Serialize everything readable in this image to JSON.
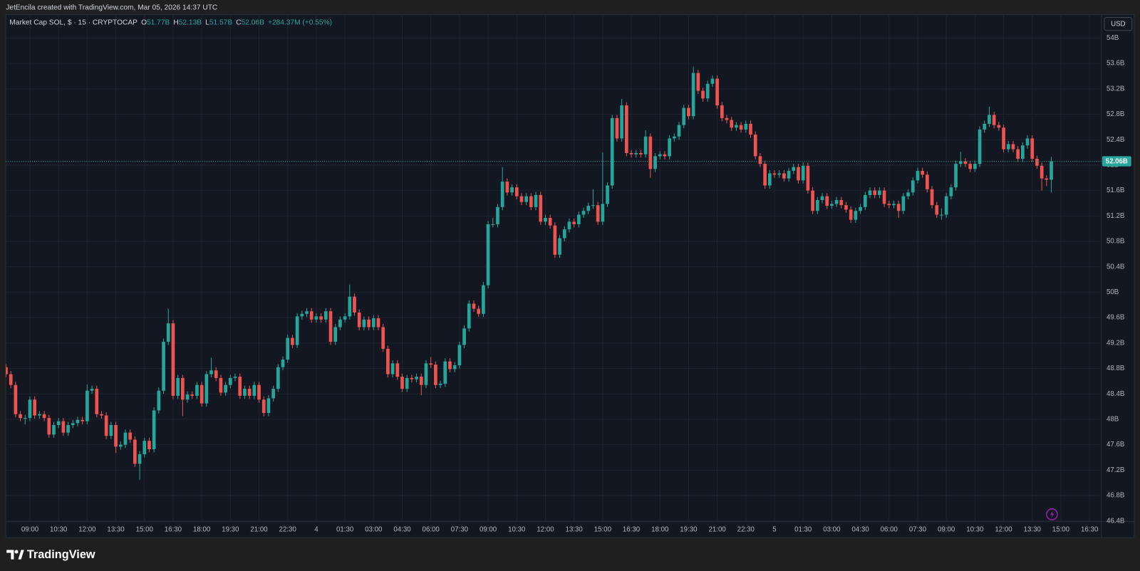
{
  "header": {
    "text": "JetEncila created with TradingView.com, Mar 05, 2026 14:37 UTC"
  },
  "chart_data": {
    "type": "candlestick",
    "symbol": "Market Cap SOL, $ · 15 · CRYPTOCAP",
    "ohlc_legend": [
      {
        "key": "O",
        "label": "51.77B"
      },
      {
        "key": "H",
        "label": "52.13B"
      },
      {
        "key": "L",
        "label": "51.57B"
      },
      {
        "key": "C",
        "label": "52.06B"
      }
    ],
    "change": "+284.37M (+0.55%)",
    "currency": "USD",
    "last_price": {
      "value": 52.06,
      "label": "52.06B"
    },
    "up_color": "#26a69a",
    "down_color": "#ef5350",
    "grid": true,
    "xlim": [
      -0.5,
      229.5
    ],
    "xticks": [
      {
        "value": 5,
        "label": "09:00"
      },
      {
        "value": 11,
        "label": "10:30"
      },
      {
        "value": 17,
        "label": "12:00"
      },
      {
        "value": 23,
        "label": "13:30"
      },
      {
        "value": 29,
        "label": "15:00"
      },
      {
        "value": 35,
        "label": "16:30"
      },
      {
        "value": 41,
        "label": "18:00"
      },
      {
        "value": 47,
        "label": "19:30"
      },
      {
        "value": 53,
        "label": "21:00"
      },
      {
        "value": 59,
        "label": "22:30"
      },
      {
        "value": 65,
        "label": "4"
      },
      {
        "value": 71,
        "label": "01:30"
      },
      {
        "value": 77,
        "label": "03:00"
      },
      {
        "value": 83,
        "label": "04:30"
      },
      {
        "value": 89,
        "label": "06:00"
      },
      {
        "value": 95,
        "label": "07:30"
      },
      {
        "value": 101,
        "label": "09:00"
      },
      {
        "value": 107,
        "label": "10:30"
      },
      {
        "value": 113,
        "label": "12:00"
      },
      {
        "value": 119,
        "label": "13:30"
      },
      {
        "value": 125,
        "label": "15:00"
      },
      {
        "value": 131,
        "label": "16:30"
      },
      {
        "value": 137,
        "label": "18:00"
      },
      {
        "value": 143,
        "label": "19:30"
      },
      {
        "value": 149,
        "label": "21:00"
      },
      {
        "value": 155,
        "label": "22:30"
      },
      {
        "value": 161,
        "label": "5"
      },
      {
        "value": 167,
        "label": "01:30"
      },
      {
        "value": 173,
        "label": "03:00"
      },
      {
        "value": 179,
        "label": "04:30"
      },
      {
        "value": 185,
        "label": "06:00"
      },
      {
        "value": 191,
        "label": "07:30"
      },
      {
        "value": 197,
        "label": "09:00"
      },
      {
        "value": 203,
        "label": "10:30"
      },
      {
        "value": 209,
        "label": "12:00"
      },
      {
        "value": 215,
        "label": "13:30"
      },
      {
        "value": 221,
        "label": "15:00"
      },
      {
        "value": 227,
        "label": "16:30"
      }
    ],
    "ylim": [
      46.39,
      54.37
    ],
    "yticks": [
      {
        "value": 46.4,
        "label": "46.4B"
      },
      {
        "value": 46.8,
        "label": "46.8B"
      },
      {
        "value": 47.2,
        "label": "47.2B"
      },
      {
        "value": 47.6,
        "label": "47.6B"
      },
      {
        "value": 48,
        "label": "48B"
      },
      {
        "value": 48.4,
        "label": "48.4B"
      },
      {
        "value": 48.8,
        "label": "48.8B"
      },
      {
        "value": 49.2,
        "label": "49.2B"
      },
      {
        "value": 49.6,
        "label": "49.6B"
      },
      {
        "value": 50,
        "label": "50B"
      },
      {
        "value": 50.4,
        "label": "50.4B"
      },
      {
        "value": 50.8,
        "label": "50.8B"
      },
      {
        "value": 51.2,
        "label": "51.2B"
      },
      {
        "value": 51.6,
        "label": "51.6B"
      },
      {
        "value": 52,
        "label": "52B"
      },
      {
        "value": 52.4,
        "label": "52.4B"
      },
      {
        "value": 52.8,
        "label": "52.8B"
      },
      {
        "value": 53.2,
        "label": "53.2B"
      },
      {
        "value": 53.6,
        "label": "53.6B"
      },
      {
        "value": 54,
        "label": "54B"
      }
    ],
    "open": [
      48.82,
      48.71,
      48.54,
      48.08,
      48.02,
      48.02,
      48.31,
      48.06,
      48.08,
      48.02,
      47.76,
      47.91,
      47.97,
      47.79,
      47.91,
      47.94,
      47.99,
      47.97,
      48.45,
      48.48,
      48.08,
      48.06,
      47.74,
      47.91,
      47.57,
      47.6,
      47.79,
      47.68,
      47.3,
      47.45,
      47.66,
      47.53,
      48.14,
      48.45,
      49.22,
      49.51,
      48.37,
      48.65,
      48.31,
      48.39,
      48.37,
      48.54,
      48.25,
      48.71,
      48.77,
      48.65,
      48.42,
      48.54,
      48.65,
      48.67,
      48.37,
      48.48,
      48.37,
      48.54,
      48.31,
      48.1,
      48.33,
      48.48,
      48.82,
      48.94,
      49.28,
      49.17,
      49.62,
      49.66,
      49.7,
      49.57,
      49.62,
      49.57,
      49.7,
      49.22,
      49.45,
      49.57,
      49.62,
      49.93,
      49.68,
      49.45,
      49.57,
      49.45,
      49.59,
      49.45,
      49.11,
      48.71,
      48.88,
      48.67,
      48.48,
      48.65,
      48.63,
      48.67,
      48.54,
      48.88,
      48.86,
      48.54,
      48.56,
      48.91,
      48.79,
      48.85,
      49.17,
      49.43,
      49.82,
      49.74,
      49.66,
      50.11,
      51.07,
      51.07,
      51.34,
      51.74,
      51.57,
      51.65,
      51.51,
      51.42,
      51.51,
      51.34,
      51.53,
      51.11,
      51.17,
      51.05,
      50.59,
      50.85,
      50.99,
      51.11,
      51.07,
      51.22,
      51.28,
      51.36,
      51.37,
      51.11,
      51.39,
      51.68,
      52.74,
      52.42,
      52.94,
      52.19,
      52.17,
      52.19,
      52.17,
      52.45,
      51.94,
      52.14,
      52.17,
      52.14,
      52.42,
      52.45,
      52.63,
      52.9,
      52.77,
      53.45,
      53.17,
      53.05,
      53.28,
      53.36,
      52.94,
      52.74,
      52.71,
      52.59,
      52.63,
      52.56,
      52.65,
      52.48,
      52.14,
      52.02,
      51.68,
      51.87,
      51.85,
      51.87,
      51.79,
      51.91,
      51.97,
      51.76,
      51.99,
      51.6,
      51.28,
      51.45,
      51.51,
      51.36,
      51.39,
      51.45,
      51.37,
      51.3,
      51.14,
      51.28,
      51.34,
      51.53,
      51.6,
      51.53,
      51.6,
      51.39,
      51.37,
      51.39,
      51.28,
      51.51,
      51.57,
      51.76,
      51.91,
      51.85,
      51.62,
      51.37,
      51.22,
      51.22,
      51.51,
      51.65,
      52.02,
      52.06,
      52.02,
      51.94,
      52.02,
      52.56,
      52.65,
      52.79,
      52.63,
      52.59,
      52.25,
      52.33,
      52.25,
      52.1,
      52.31,
      52.42,
      52.1,
      51.99,
      51.79,
      51.77
    ],
    "high": [
      48.87,
      48.76,
      48.59,
      48.13,
      48.07,
      48.36,
      48.36,
      48.13,
      48.13,
      48.07,
      47.96,
      48.02,
      48.02,
      47.96,
      47.99,
      48.04,
      48.04,
      48.55,
      48.53,
      48.53,
      48.13,
      48.11,
      47.96,
      47.96,
      47.65,
      47.84,
      47.84,
      47.73,
      47.5,
      47.71,
      47.71,
      48.19,
      48.5,
      49.27,
      49.74,
      49.56,
      48.7,
      48.7,
      48.44,
      48.44,
      48.59,
      48.59,
      48.76,
      48.97,
      48.82,
      48.7,
      48.59,
      48.7,
      48.72,
      48.72,
      48.53,
      48.53,
      48.59,
      48.59,
      48.36,
      48.38,
      48.53,
      48.87,
      48.99,
      49.33,
      49.33,
      49.67,
      49.71,
      49.75,
      49.75,
      49.67,
      49.67,
      49.75,
      49.75,
      49.5,
      49.62,
      49.67,
      50.12,
      49.98,
      49.73,
      49.62,
      49.62,
      49.64,
      49.64,
      49.5,
      49.16,
      48.93,
      48.93,
      48.72,
      48.7,
      48.7,
      48.72,
      48.72,
      48.93,
      48.98,
      48.91,
      48.61,
      48.96,
      48.96,
      48.9,
      49.22,
      49.48,
      49.87,
      49.87,
      49.79,
      50.16,
      51.12,
      51.17,
      51.39,
      51.97,
      51.79,
      51.7,
      51.7,
      51.56,
      51.56,
      51.56,
      51.58,
      51.58,
      51.22,
      51.22,
      51.1,
      50.9,
      51.04,
      51.16,
      51.16,
      51.27,
      51.33,
      51.41,
      51.62,
      51.42,
      52.2,
      51.73,
      52.79,
      52.79,
      53.04,
      52.99,
      52.24,
      52.24,
      52.24,
      52.55,
      52.5,
      52.19,
      52.22,
      52.22,
      52.47,
      52.5,
      52.68,
      52.95,
      52.95,
      53.55,
      53.5,
      53.22,
      53.33,
      53.41,
      53.41,
      52.99,
      52.79,
      52.76,
      52.68,
      52.68,
      52.7,
      52.7,
      52.53,
      52.19,
      52.07,
      51.92,
      51.92,
      51.92,
      51.92,
      51.96,
      52.02,
      52.02,
      52.04,
      52.04,
      51.65,
      51.5,
      51.56,
      51.56,
      51.44,
      51.5,
      51.5,
      51.42,
      51.35,
      51.33,
      51.39,
      51.58,
      51.65,
      51.65,
      51.65,
      51.65,
      51.44,
      51.44,
      51.44,
      51.56,
      51.62,
      51.81,
      51.96,
      51.96,
      51.9,
      51.67,
      51.42,
      51.32,
      51.56,
      51.7,
      52.07,
      52.21,
      52.11,
      52.07,
      52.07,
      52.61,
      52.7,
      52.92,
      52.84,
      52.68,
      52.64,
      52.38,
      52.38,
      52.3,
      52.36,
      52.47,
      52.47,
      52.15,
      52.04,
      51.84,
      52.13
    ],
    "low": [
      48.66,
      48.49,
      48.03,
      47.97,
      47.92,
      47.97,
      48.01,
      48.01,
      47.97,
      47.71,
      47.71,
      47.86,
      47.74,
      47.74,
      47.86,
      47.89,
      47.92,
      47.92,
      48.4,
      48.03,
      48.01,
      47.69,
      47.69,
      47.47,
      47.52,
      47.55,
      47.63,
      47.25,
      47.05,
      47.4,
      47.48,
      47.48,
      48.09,
      48.4,
      49.17,
      48.32,
      48.32,
      48.05,
      48.26,
      48.32,
      48.32,
      48.2,
      48.2,
      48.66,
      48.6,
      48.37,
      48.37,
      48.49,
      48.6,
      48.32,
      48.32,
      48.32,
      48.32,
      48.26,
      48.05,
      48.05,
      48.28,
      48.43,
      48.77,
      48.89,
      49.12,
      49.12,
      49.57,
      49.61,
      49.52,
      49.52,
      49.52,
      49.52,
      49.17,
      49.17,
      49.4,
      49.52,
      49.57,
      49.63,
      49.4,
      49.4,
      49.4,
      49.4,
      49.4,
      49.06,
      48.66,
      48.66,
      48.62,
      48.43,
      48.43,
      48.58,
      48.58,
      48.38,
      48.49,
      48.81,
      48.49,
      48.49,
      48.51,
      48.74,
      48.74,
      48.8,
      49.12,
      49.38,
      49.69,
      49.61,
      49.61,
      50.06,
      51.02,
      51.02,
      51.29,
      51.52,
      51.52,
      51.46,
      51.37,
      51.37,
      51.29,
      51.29,
      51.06,
      51.06,
      51.0,
      50.54,
      50.54,
      50.8,
      50.94,
      51.02,
      51.02,
      51.17,
      51.23,
      51.31,
      51.06,
      51.06,
      51.34,
      51.63,
      52.37,
      52.37,
      52.14,
      52.12,
      52.12,
      52.12,
      52.12,
      51.8,
      51.89,
      52.09,
      52.09,
      52.09,
      52.37,
      52.4,
      52.58,
      52.72,
      52.72,
      53.12,
      53.0,
      53.0,
      53.23,
      52.89,
      52.69,
      52.66,
      52.54,
      52.54,
      52.51,
      52.51,
      52.43,
      52.09,
      51.97,
      51.63,
      51.63,
      51.8,
      51.8,
      51.74,
      51.74,
      51.86,
      51.71,
      51.71,
      51.55,
      51.23,
      51.23,
      51.4,
      51.31,
      51.31,
      51.34,
      51.32,
      51.25,
      51.09,
      51.09,
      51.23,
      51.29,
      51.48,
      51.48,
      51.48,
      51.34,
      51.32,
      51.32,
      51.17,
      51.23,
      51.46,
      51.52,
      51.71,
      51.8,
      51.57,
      51.32,
      51.17,
      51.14,
      51.17,
      51.46,
      51.6,
      51.97,
      51.97,
      51.89,
      51.89,
      51.97,
      52.51,
      52.6,
      52.58,
      52.54,
      52.2,
      52.2,
      52.2,
      52.05,
      52.05,
      52.26,
      52.05,
      51.94,
      51.6,
      51.67,
      51.57
    ],
    "close": [
      48.71,
      48.54,
      48.08,
      48.02,
      48.02,
      48.31,
      48.06,
      48.08,
      48.02,
      47.76,
      47.91,
      47.97,
      47.79,
      47.91,
      47.94,
      47.99,
      47.97,
      48.45,
      48.48,
      48.08,
      48.06,
      47.74,
      47.91,
      47.57,
      47.6,
      47.79,
      47.68,
      47.3,
      47.45,
      47.66,
      47.53,
      48.14,
      48.45,
      49.22,
      49.51,
      48.37,
      48.65,
      48.31,
      48.39,
      48.37,
      48.54,
      48.25,
      48.71,
      48.77,
      48.65,
      48.42,
      48.54,
      48.65,
      48.67,
      48.37,
      48.48,
      48.37,
      48.54,
      48.31,
      48.1,
      48.33,
      48.48,
      48.82,
      48.94,
      49.28,
      49.17,
      49.62,
      49.66,
      49.7,
      49.57,
      49.62,
      49.57,
      49.7,
      49.22,
      49.45,
      49.57,
      49.62,
      49.93,
      49.68,
      49.45,
      49.57,
      49.45,
      49.59,
      49.45,
      49.11,
      48.71,
      48.88,
      48.67,
      48.48,
      48.65,
      48.63,
      48.67,
      48.54,
      48.88,
      48.86,
      48.54,
      48.56,
      48.91,
      48.79,
      48.85,
      49.17,
      49.43,
      49.82,
      49.74,
      49.66,
      50.11,
      51.07,
      51.07,
      51.34,
      51.74,
      51.57,
      51.65,
      51.51,
      51.42,
      51.51,
      51.34,
      51.53,
      51.11,
      51.17,
      51.05,
      50.59,
      50.85,
      50.99,
      51.11,
      51.07,
      51.22,
      51.28,
      51.36,
      51.37,
      51.11,
      51.39,
      51.68,
      52.74,
      52.42,
      52.94,
      52.19,
      52.17,
      52.19,
      52.17,
      52.45,
      51.94,
      52.14,
      52.17,
      52.14,
      52.42,
      52.45,
      52.63,
      52.9,
      52.77,
      53.45,
      53.17,
      53.05,
      53.28,
      53.36,
      52.94,
      52.74,
      52.71,
      52.59,
      52.63,
      52.56,
      52.65,
      52.48,
      52.14,
      52.02,
      51.68,
      51.87,
      51.85,
      51.87,
      51.79,
      51.91,
      51.97,
      51.76,
      51.99,
      51.6,
      51.28,
      51.45,
      51.51,
      51.36,
      51.39,
      51.45,
      51.37,
      51.3,
      51.14,
      51.28,
      51.34,
      51.53,
      51.6,
      51.53,
      51.6,
      51.39,
      51.37,
      51.39,
      51.28,
      51.51,
      51.57,
      51.76,
      51.91,
      51.85,
      51.62,
      51.37,
      51.22,
      51.22,
      51.51,
      51.65,
      52.02,
      52.06,
      52.02,
      51.94,
      52.02,
      52.56,
      52.65,
      52.79,
      52.63,
      52.59,
      52.25,
      52.33,
      52.25,
      52.1,
      52.31,
      52.42,
      52.1,
      51.99,
      51.79,
      51.77,
      52.06
    ]
  },
  "footer": {
    "brand": "TradingView"
  }
}
